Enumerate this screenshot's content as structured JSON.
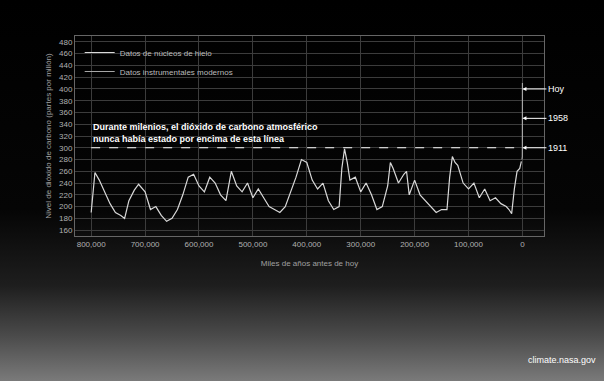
{
  "chart_data": {
    "type": "line",
    "y_label": "Nivel de dióxido de carbono (partes por millón)",
    "x_label": "Miles de años antes de hoy",
    "source": "climate.nasa.gov",
    "grid": true,
    "legend": "top left",
    "xlim": [
      830000,
      -40000
    ],
    "xticks": [
      {
        "value": 800000,
        "label": "800,000"
      },
      {
        "value": 700000,
        "label": "700,000"
      },
      {
        "value": 600000,
        "label": "600,000"
      },
      {
        "value": 500000,
        "label": "500,000"
      },
      {
        "value": 400000,
        "label": "400,000"
      },
      {
        "value": 300000,
        "label": "300,000"
      },
      {
        "value": 200000,
        "label": "200,000"
      },
      {
        "value": 100000,
        "label": "100,000"
      },
      0
    ],
    "ylim": [
      150,
      490
    ],
    "yticks": [
      160,
      180,
      200,
      220,
      240,
      260,
      280,
      300,
      320,
      340,
      360,
      380,
      400,
      420,
      440,
      460,
      480
    ],
    "series": [
      {
        "name": "Datos de núcleos de hielo",
        "color": "#d9d9d9",
        "x": [
          800000,
          793000,
          785000,
          775000,
          765000,
          755000,
          745000,
          738000,
          730000,
          720000,
          712000,
          700000,
          690000,
          680000,
          670000,
          660000,
          650000,
          640000,
          630000,
          620000,
          610000,
          600000,
          590000,
          580000,
          570000,
          560000,
          550000,
          540000,
          530000,
          520000,
          510000,
          500000,
          490000,
          480000,
          470000,
          460000,
          450000,
          440000,
          430000,
          420000,
          410000,
          400000,
          390000,
          380000,
          370000,
          360000,
          350000,
          340000,
          335000,
          330000,
          325000,
          320000,
          310000,
          300000,
          290000,
          280000,
          270000,
          260000,
          250000,
          245000,
          240000,
          230000,
          220000,
          215000,
          210000,
          200000,
          190000,
          180000,
          170000,
          160000,
          150000,
          140000,
          135000,
          130000,
          125000,
          120000,
          110000,
          100000,
          90000,
          80000,
          70000,
          60000,
          50000,
          40000,
          30000,
          25000,
          20000,
          15000,
          10000,
          5000,
          2000
        ],
        "values": [
          190,
          258,
          245,
          225,
          205,
          190,
          185,
          180,
          210,
          228,
          238,
          225,
          195,
          200,
          185,
          175,
          180,
          195,
          220,
          250,
          255,
          235,
          225,
          250,
          240,
          220,
          210,
          260,
          235,
          225,
          240,
          215,
          230,
          215,
          200,
          195,
          190,
          200,
          225,
          250,
          280,
          275,
          245,
          230,
          240,
          210,
          195,
          200,
          265,
          298,
          275,
          245,
          250,
          225,
          240,
          220,
          195,
          200,
          235,
          275,
          265,
          240,
          255,
          260,
          220,
          245,
          220,
          210,
          200,
          190,
          195,
          195,
          250,
          285,
          275,
          270,
          240,
          230,
          240,
          215,
          230,
          210,
          215,
          205,
          200,
          195,
          188,
          230,
          260,
          265,
          277
        ]
      },
      {
        "name": "Datos instrumentales modernos",
        "color": "#a6a6a6",
        "x": [
          1000,
          200,
          110,
          63,
          0
        ],
        "values": [
          280,
          285,
          300,
          315,
          410
        ]
      }
    ],
    "reference_line": {
      "y": 300,
      "x": [
        800000,
        0
      ],
      "line_style": "dashed",
      "text": [
        "Durante milenios, el dióxido de carbono atmosférico",
        "nunca había estado por encima de esta línea"
      ]
    },
    "annotations": [
      {
        "text": "Hoy",
        "x": 0,
        "y": 400
      },
      {
        "text": "1958",
        "x": 0,
        "y": 350
      },
      {
        "text": "1911",
        "x": 0,
        "y": 300
      }
    ]
  }
}
